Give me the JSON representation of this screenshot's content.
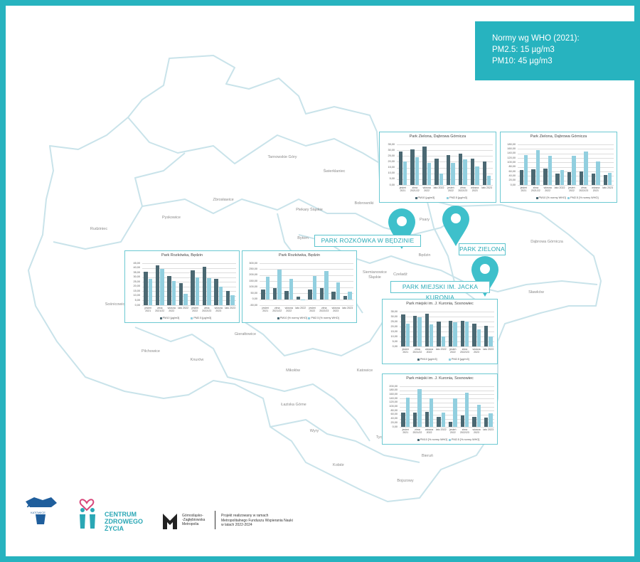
{
  "note": [
    "Normy wg WHO (2021):",
    "PM2.5: 15 µg/m3",
    "PM10: 45 µg/m3"
  ],
  "places": [
    "PARK ROZKÓWKA W BĘDZINIE",
    "PARK ZIELONA",
    "PARK MIEJSKI IM. JACKA KURONIA"
  ],
  "towns": [
    "Tarnowskie Góry",
    "Świerklaniec",
    "Zbrosławice",
    "Pyskowice",
    "Bobrowniki",
    "Piekary Śląskie",
    "Rudziniec",
    "Bytom",
    "Psary",
    "Będzin",
    "Dąbrowa Górnicza",
    "Czeladź",
    "Siemianowice Śląskie",
    "Sławków",
    "Sośnicowice",
    "Gierałtowice",
    "Pilchowice",
    "Knurów",
    "Mikołów",
    "Katowice",
    "Łaziska Górne",
    "Wyry",
    "Tyc",
    "Bieruń",
    "Kobiór",
    "Bojszowy"
  ],
  "footer": {
    "awf": "AWF",
    "awf_city": "KATOWICE",
    "czz": [
      "CENTRUM",
      "ZDROWEGO",
      "ŻYCIA"
    ],
    "gzm": [
      "Górnośląsko-",
      "-Zagłębiowska",
      "Metropolia"
    ],
    "project": [
      "Projekt realizowany w ramach",
      "Metropolitalnego Funduszu Wspierania Nauki",
      "w latach 2022-2024"
    ]
  },
  "chart_data": [
    {
      "type": "bar",
      "title": "Park Zielona, Dąbrowa Górnicza",
      "categories": [
        "jesień 2021",
        "zima 2021/22",
        "wiosna 2022",
        "lato 2022",
        "jesień 2022",
        "zima 2022/23",
        "wiosna 2023",
        "lato 2023"
      ],
      "series": [
        {
          "name": "PM10 [µg/m3]",
          "color": "#4b6872",
          "values": [
            29,
            31,
            33,
            23,
            26,
            27,
            23,
            20
          ]
        },
        {
          "name": "PM2.5 [µg/m3]",
          "color": "#92cfdf",
          "values": [
            20,
            24,
            19,
            10,
            19,
            22,
            16,
            8
          ]
        }
      ],
      "ylim": [
        0,
        35
      ],
      "yticks": [
        {
          "value": 0,
          "label": "0,00"
        },
        {
          "value": 5,
          "label": "5,00"
        },
        {
          "value": 10,
          "label": "10,00"
        },
        {
          "value": 15,
          "label": "15,00"
        },
        {
          "value": 20,
          "label": "20,00"
        },
        {
          "value": 25,
          "label": "25,00"
        },
        {
          "value": 30,
          "label": "30,00"
        },
        {
          "value": 35,
          "label": "35,00"
        }
      ],
      "grid": true
    },
    {
      "type": "bar",
      "title": "Park Zielona, Dąbrowa Górnicza",
      "categories": [
        "jesień 2021",
        "zima 2021/22",
        "wiosna 2022",
        "lato 2022",
        "jesień 2022",
        "zima 2022/23",
        "wiosna 2023",
        "lato 2023"
      ],
      "series": [
        {
          "name": "PM10 [% normy WHO]",
          "color": "#4b6872",
          "values": [
            65,
            70,
            73,
            50,
            58,
            60,
            50,
            45
          ]
        },
        {
          "name": "PM2.5 [% normy WHO]",
          "color": "#92cfdf",
          "values": [
            132,
            155,
            128,
            67,
            128,
            150,
            105,
            55
          ]
        }
      ],
      "ylim": [
        0,
        180
      ],
      "yticks": [
        {
          "value": 0,
          "label": "0,00"
        },
        {
          "value": 20,
          "label": "20,00"
        },
        {
          "value": 40,
          "label": "40,00"
        },
        {
          "value": 60,
          "label": "60,00"
        },
        {
          "value": 80,
          "label": "80,00"
        },
        {
          "value": 100,
          "label": "100,00"
        },
        {
          "value": 120,
          "label": "120,00"
        },
        {
          "value": 140,
          "label": "140,00"
        },
        {
          "value": 160,
          "label": "160,00"
        },
        {
          "value": 180,
          "label": "180,00"
        }
      ],
      "grid": true
    },
    {
      "type": "bar",
      "title": "Park Rozkówka, Będzin",
      "categories": [
        "jesień 2021",
        "zima 2021/22",
        "wiosna 2022",
        "lato 2022",
        "jesień 2022",
        "zima 2022/23",
        "wiosna 2023",
        "lato 2023"
      ],
      "series": [
        {
          "name": "PM10 [µg/m3]",
          "color": "#4b6872",
          "values": [
            36,
            43,
            31,
            24,
            37,
            41,
            28,
            15
          ]
        },
        {
          "name": "PM2.5 [µg/m3]",
          "color": "#92cfdf",
          "values": [
            28,
            39,
            26,
            12,
            30,
            29,
            20,
            11
          ]
        }
      ],
      "ylim": [
        0,
        45
      ],
      "yticks": [
        {
          "value": 0,
          "label": "0,00"
        },
        {
          "value": 5,
          "label": "5,00"
        },
        {
          "value": 10,
          "label": "10,00"
        },
        {
          "value": 15,
          "label": "15,00"
        },
        {
          "value": 20,
          "label": "20,00"
        },
        {
          "value": 25,
          "label": "25,00"
        },
        {
          "value": 30,
          "label": "30,00"
        },
        {
          "value": 35,
          "label": "35,00"
        },
        {
          "value": 40,
          "label": "40,00"
        },
        {
          "value": 45,
          "label": "45,00"
        }
      ],
      "grid": true
    },
    {
      "type": "bar",
      "title": "Park Rozkówka, Będzin",
      "categories": [
        "jesień 2021",
        "zima 2021/22",
        "wiosna 2022",
        "lato 2022",
        "jesień 2022",
        "zima 2022/23",
        "wiosna 2023",
        "lato 2023"
      ],
      "series": [
        {
          "name": "PM10 [% normy WHO]",
          "color": "#4b6872",
          "values": [
            80,
            95,
            70,
            20,
            80,
            90,
            60,
            30
          ]
        },
        {
          "name": "PM2.5 [% normy WHO]",
          "color": "#92cfdf",
          "values": [
            185,
            245,
            170,
            -8,
            195,
            235,
            140,
            60
          ]
        }
      ],
      "ylim": [
        -50,
        300
      ],
      "yticks": [
        {
          "value": -50,
          "label": "-50,00"
        },
        {
          "value": 0,
          "label": "0,00"
        },
        {
          "value": 50,
          "label": "50,00"
        },
        {
          "value": 100,
          "label": "100,00"
        },
        {
          "value": 150,
          "label": "150,00"
        },
        {
          "value": 200,
          "label": "200,00"
        },
        {
          "value": 250,
          "label": "250,00"
        },
        {
          "value": 300,
          "label": "300,00"
        }
      ],
      "grid": true
    },
    {
      "type": "bar",
      "title": "Park miejski im. J. Kuronia, Sosnowiec",
      "categories": [
        "jesień 2021",
        "zima 2021/22",
        "wiosna 2022",
        "lato 2022",
        "jesień 2022",
        "zima 2022/23",
        "wiosna 2023",
        "lato 2023"
      ],
      "series": [
        {
          "name": "PM10 [µg/m3]",
          "color": "#4b6872",
          "values": [
            32,
            31,
            33,
            25,
            26,
            26,
            23,
            21
          ]
        },
        {
          "name": "PM2.5 [µg/m3]",
          "color": "#92cfdf",
          "values": [
            23,
            29,
            22,
            10,
            24,
            25,
            17,
            10
          ]
        }
      ],
      "ylim": [
        0,
        35
      ],
      "yticks": [
        {
          "value": 0,
          "label": "0,00"
        },
        {
          "value": 5,
          "label": "5,00"
        },
        {
          "value": 10,
          "label": "10,00"
        },
        {
          "value": 15,
          "label": "15,00"
        },
        {
          "value": 20,
          "label": "20,00"
        },
        {
          "value": 25,
          "label": "25,00"
        },
        {
          "value": 30,
          "label": "30,00"
        },
        {
          "value": 35,
          "label": "35,00"
        }
      ],
      "grid": true
    },
    {
      "type": "bar",
      "title": "Park miejski im. J. Kuronia, Sosnowiec",
      "categories": [
        "jesień 2021",
        "zima 2021/22",
        "wiosna 2022",
        "lato 2022",
        "jesień 2022",
        "zima 2022/23",
        "wiosna 2023",
        "lato 2023"
      ],
      "series": [
        {
          "name": "PM10 [% normy WHO]",
          "color": "#4b6872",
          "values": [
            70,
            70,
            73,
            50,
            25,
            55,
            50,
            45
          ]
        },
        {
          "name": "PM2.5 [% normy WHO]",
          "color": "#92cfdf",
          "values": [
            145,
            185,
            140,
            70,
            140,
            170,
            110,
            65
          ]
        }
      ],
      "ylim": [
        0,
        200
      ],
      "yticks": [
        {
          "value": 0,
          "label": "0,00"
        },
        {
          "value": 20,
          "label": "20,00"
        },
        {
          "value": 40,
          "label": "40,00"
        },
        {
          "value": 60,
          "label": "60,00"
        },
        {
          "value": 80,
          "label": "80,00"
        },
        {
          "value": 100,
          "label": "100,00"
        },
        {
          "value": 120,
          "label": "120,00"
        },
        {
          "value": 140,
          "label": "140,00"
        },
        {
          "value": 160,
          "label": "160,00"
        },
        {
          "value": 180,
          "label": "180,00"
        },
        {
          "value": 200,
          "label": "200,00"
        }
      ],
      "grid": true
    }
  ]
}
